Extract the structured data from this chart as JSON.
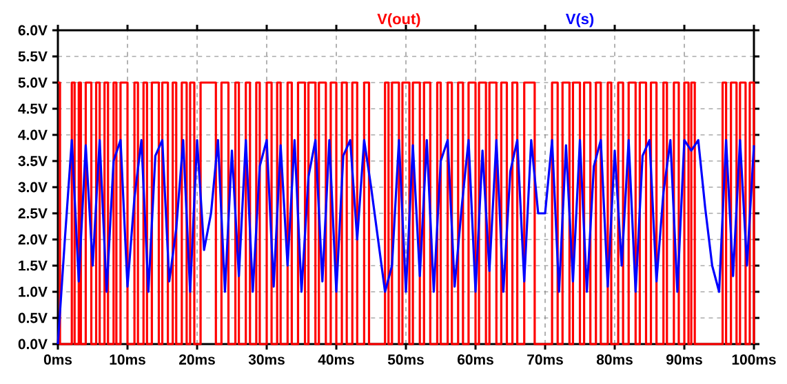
{
  "chart_data": {
    "type": "line",
    "xlim": [
      0,
      100
    ],
    "xticks": [
      {
        "value": 0,
        "label": "0ms"
      },
      {
        "value": 10,
        "label": "10ms"
      },
      {
        "value": 20,
        "label": "20ms"
      },
      {
        "value": 30,
        "label": "30ms"
      },
      {
        "value": 40,
        "label": "40ms"
      },
      {
        "value": 50,
        "label": "50ms"
      },
      {
        "value": 60,
        "label": "60ms"
      },
      {
        "value": 70,
        "label": "70ms"
      },
      {
        "value": 80,
        "label": "80ms"
      },
      {
        "value": 90,
        "label": "90ms"
      },
      {
        "value": 100,
        "label": "100ms"
      }
    ],
    "ylim": [
      0,
      6
    ],
    "yticks": [
      {
        "value": 0,
        "label": "0.0V"
      },
      {
        "value": 0.5,
        "label": "0.5V"
      },
      {
        "value": 1,
        "label": "1.0V"
      },
      {
        "value": 1.5,
        "label": "1.5V"
      },
      {
        "value": 2,
        "label": "2.0V"
      },
      {
        "value": 2.5,
        "label": "2.5V"
      },
      {
        "value": 3,
        "label": "3.0V"
      },
      {
        "value": 3.5,
        "label": "3.5V"
      },
      {
        "value": 4,
        "label": "4.0V"
      },
      {
        "value": 4.5,
        "label": "4.5V"
      },
      {
        "value": 5,
        "label": "5.0V"
      },
      {
        "value": 5.5,
        "label": "5.5V"
      },
      {
        "value": 6,
        "label": "6.0V"
      }
    ],
    "grid": true,
    "legend": "top",
    "series": [
      {
        "name": "V(out)",
        "color": "#ff0000",
        "type": "step",
        "x": [
          0,
          0.3,
          2,
          2.4,
          3,
          3.3,
          4,
          4.8,
          5.5,
          6,
          6.7,
          7.2,
          8,
          8.4,
          9,
          10,
          11,
          11.5,
          12.3,
          12.8,
          13.5,
          14.5,
          15,
          15.8,
          16.5,
          17,
          17.8,
          18.5,
          19,
          19.6,
          20.5,
          22.7,
          23.5,
          24.5,
          25.5,
          26,
          27,
          27.6,
          28.5,
          29,
          30,
          30.7,
          31.5,
          32,
          33,
          33.6,
          34.5,
          35.5,
          36,
          37,
          37.5,
          38.5,
          39.2,
          40,
          40.8,
          41.5,
          42.3,
          43,
          44,
          44.7,
          47,
          47.5,
          48,
          49,
          49.5,
          50.5,
          51,
          52,
          52.6,
          53.5,
          54.5,
          55,
          56,
          56.6,
          57.5,
          58.2,
          59,
          60,
          60.5,
          61.5,
          62,
          63,
          63.7,
          64.5,
          65.3,
          66,
          67,
          68.5,
          71,
          71.8,
          72.5,
          73.5,
          74,
          75,
          75.6,
          76.5,
          77.3,
          78,
          79,
          79.5,
          80.5,
          81.2,
          82,
          83,
          83.6,
          84.5,
          85.2,
          86,
          87,
          87.5,
          88.5,
          89.2,
          90,
          90.6,
          91,
          91.5,
          95.5,
          96,
          96.7,
          97.5,
          98,
          98.8,
          99.4,
          100
        ],
        "values": [
          5,
          0,
          5,
          0,
          5,
          0,
          5,
          0,
          5,
          0,
          5,
          0,
          5,
          0,
          5,
          0,
          5,
          0,
          5,
          0,
          5,
          0,
          5,
          0,
          5,
          0,
          5,
          0,
          5,
          0,
          5,
          0,
          5,
          0,
          5,
          0,
          5,
          0,
          5,
          0,
          5,
          0,
          5,
          0,
          5,
          0,
          5,
          0,
          5,
          0,
          5,
          0,
          5,
          0,
          5,
          0,
          5,
          0,
          5,
          0,
          5,
          0,
          5,
          0,
          5,
          0,
          5,
          0,
          5,
          0,
          5,
          0,
          5,
          0,
          5,
          0,
          5,
          0,
          5,
          0,
          5,
          0,
          5,
          0,
          5,
          0,
          5,
          0,
          5,
          0,
          5,
          0,
          5,
          0,
          5,
          0,
          5,
          0,
          5,
          0,
          5,
          0,
          5,
          0,
          5,
          0,
          5,
          0,
          5,
          0,
          5,
          0,
          5,
          0,
          5,
          0,
          5,
          0,
          5,
          0,
          5,
          0,
          5,
          0
        ]
      },
      {
        "name": "V(s)",
        "color": "#0000ff",
        "x": [
          0,
          1,
          2,
          3,
          4,
          5,
          6,
          7,
          8,
          9,
          10,
          11,
          12,
          13,
          14,
          15,
          16,
          17,
          18,
          19,
          20,
          21,
          22,
          23,
          24,
          25,
          26,
          27,
          28,
          29,
          30,
          31,
          32,
          33,
          34,
          35,
          36,
          37,
          38,
          39,
          40,
          41,
          42,
          43,
          44,
          45,
          46,
          47,
          48,
          49,
          50,
          51,
          52,
          53,
          54,
          55,
          56,
          57,
          58,
          59,
          60,
          61,
          62,
          63,
          64,
          65,
          66,
          67,
          68,
          69,
          70,
          71,
          72,
          73,
          74,
          75,
          76,
          77,
          78,
          79,
          80,
          81,
          82,
          83,
          84,
          85,
          86,
          87,
          88,
          89,
          90,
          91,
          92,
          93,
          94,
          95,
          96,
          97,
          98,
          99,
          100
        ],
        "values": [
          0,
          2.0,
          3.9,
          1.2,
          3.8,
          1.5,
          3.9,
          1.0,
          3.5,
          3.9,
          1.1,
          2.8,
          3.9,
          1.0,
          3.6,
          3.9,
          1.2,
          2.2,
          3.9,
          1.0,
          3.9,
          1.8,
          2.5,
          3.9,
          1.0,
          3.7,
          1.3,
          3.9,
          1.0,
          3.4,
          3.9,
          1.1,
          3.8,
          1.5,
          3.9,
          1.0,
          3.2,
          3.9,
          1.2,
          3.9,
          1.0,
          3.6,
          3.9,
          2.0,
          3.9,
          3.0,
          2.0,
          1.0,
          1.5,
          3.9,
          1.0,
          3.8,
          1.3,
          3.9,
          1.0,
          3.5,
          3.9,
          1.1,
          2.6,
          3.9,
          1.0,
          3.7,
          1.4,
          3.9,
          1.0,
          3.3,
          3.9,
          1.2,
          3.9,
          2.5,
          2.5,
          3.9,
          1.0,
          3.8,
          1.2,
          3.9,
          1.0,
          3.4,
          3.9,
          1.1,
          3.7,
          1.5,
          3.9,
          1.0,
          3.6,
          3.9,
          1.2,
          2.9,
          3.9,
          1.0,
          3.9,
          3.7,
          3.9,
          2.6,
          1.5,
          1.0,
          3.9,
          1.3,
          3.9,
          1.5,
          3.8
        ]
      }
    ]
  }
}
